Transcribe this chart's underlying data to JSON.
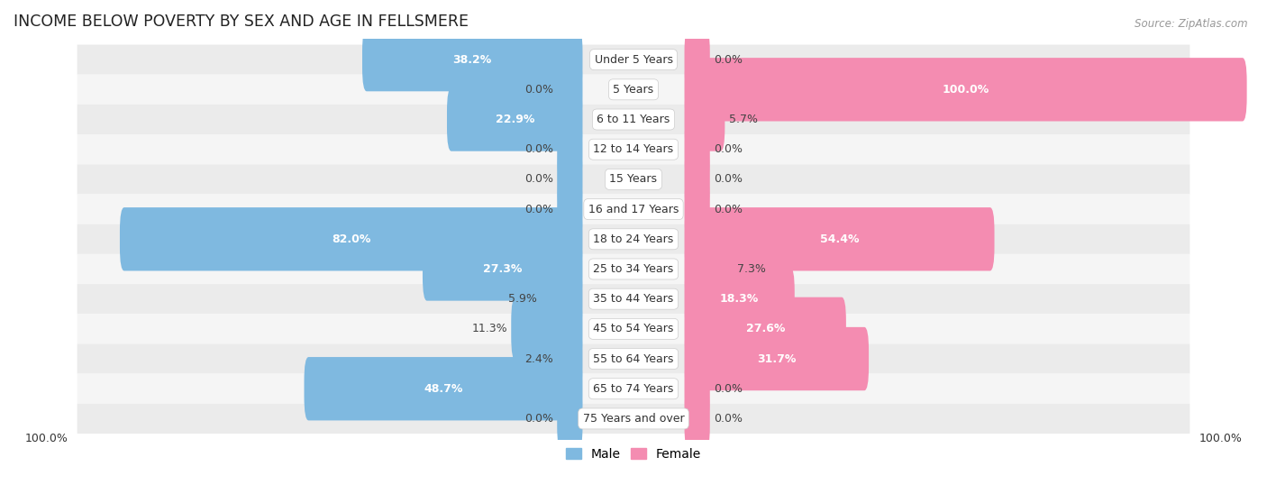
{
  "title": "INCOME BELOW POVERTY BY SEX AND AGE IN FELLSMERE",
  "source": "Source: ZipAtlas.com",
  "categories": [
    "Under 5 Years",
    "5 Years",
    "6 to 11 Years",
    "12 to 14 Years",
    "15 Years",
    "16 and 17 Years",
    "18 to 24 Years",
    "25 to 34 Years",
    "35 to 44 Years",
    "45 to 54 Years",
    "55 to 64 Years",
    "65 to 74 Years",
    "75 Years and over"
  ],
  "male": [
    38.2,
    0.0,
    22.9,
    0.0,
    0.0,
    0.0,
    82.0,
    27.3,
    5.9,
    11.3,
    2.4,
    48.7,
    0.0
  ],
  "female": [
    0.0,
    100.0,
    5.7,
    0.0,
    0.0,
    0.0,
    54.4,
    7.3,
    18.3,
    27.6,
    31.7,
    0.0,
    0.0
  ],
  "male_color": "#7fb9e0",
  "female_color": "#f48cb1",
  "background_color": "#ffffff",
  "row_colors": [
    "#ebebeb",
    "#f5f5f5"
  ],
  "axis_label_bottom_left": "100.0%",
  "axis_label_bottom_right": "100.0%",
  "legend_male": "Male",
  "legend_female": "Female",
  "max_value": 100.0,
  "min_bar": 3.0,
  "bar_height": 0.52,
  "title_fontsize": 12.5,
  "label_fontsize": 9,
  "category_fontsize": 9,
  "source_fontsize": 8.5,
  "legend_fontsize": 10,
  "inside_label_threshold": 12.0
}
